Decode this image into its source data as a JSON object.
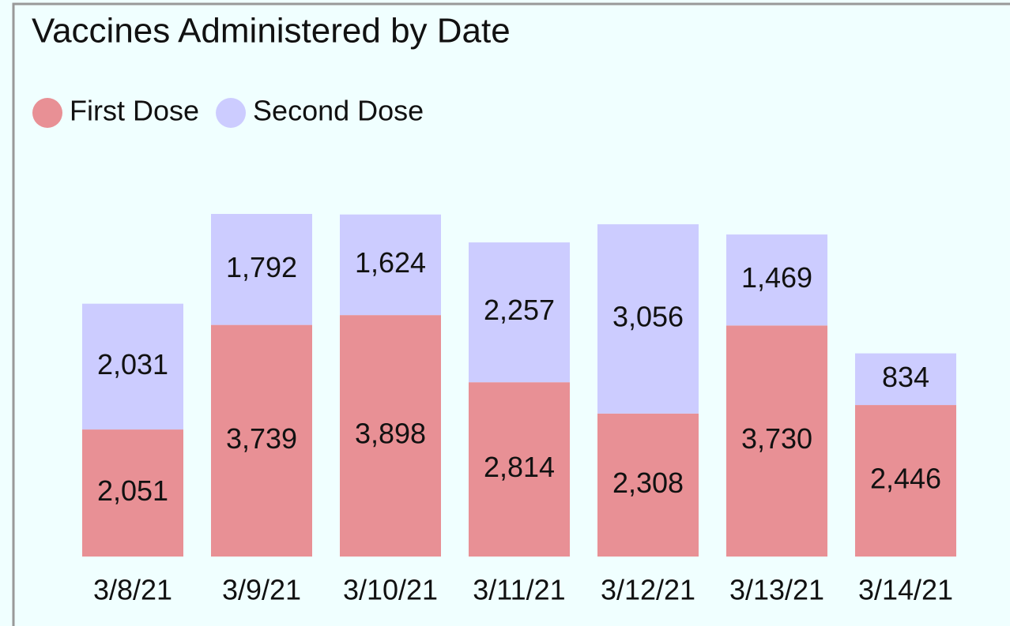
{
  "chart_data": {
    "type": "stacked_bar",
    "title": "Vaccines Administered by Date",
    "categories": [
      "3/8/21",
      "3/9/21",
      "3/10/21",
      "3/11/21",
      "3/12/21",
      "3/13/21",
      "3/14/21"
    ],
    "series": [
      {
        "name": "First Dose",
        "color": "#e89095",
        "values": [
          2051,
          3739,
          3898,
          2814,
          2308,
          3730,
          2446
        ],
        "value_labels": [
          "2,051",
          "3,739",
          "3,898",
          "2,814",
          "2,308",
          "3,730",
          "2,446"
        ]
      },
      {
        "name": "Second Dose",
        "color": "#ccccff",
        "values": [
          2031,
          1792,
          1624,
          2257,
          3056,
          1469,
          834
        ],
        "value_labels": [
          "2,031",
          "1,792",
          "1,624",
          "2,257",
          "3,056",
          "1,469",
          "834"
        ]
      }
    ],
    "legend": "top-left"
  }
}
